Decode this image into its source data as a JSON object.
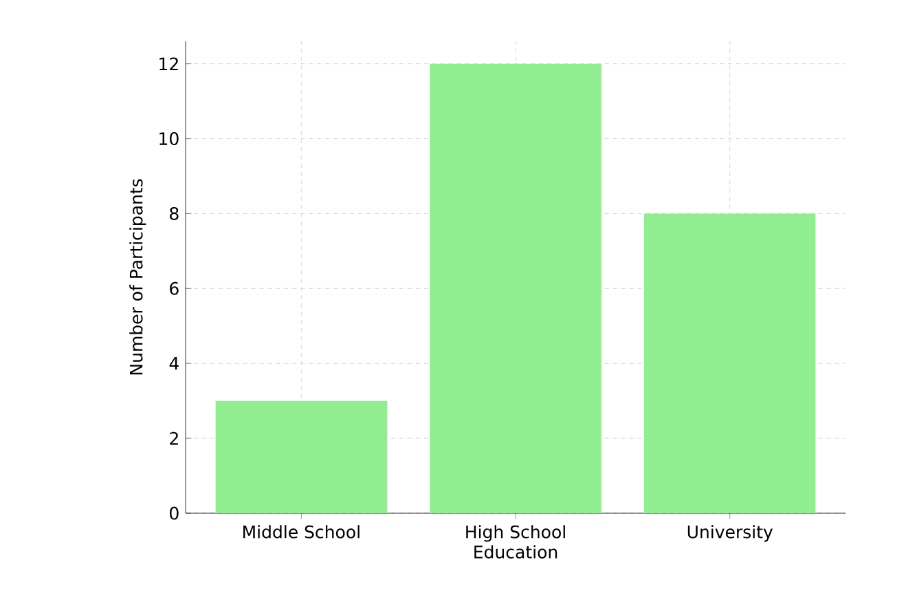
{
  "chart_data": {
    "type": "bar",
    "xlabel": "Education",
    "ylabel": "Number of Participants",
    "categories": [
      "Middle School",
      "High School",
      "University"
    ],
    "values": [
      3,
      12,
      8
    ],
    "color": "#90ee90",
    "ylim": [
      0,
      12.6
    ],
    "yticks": [
      0,
      2,
      4,
      6,
      8,
      10,
      12
    ],
    "grid": true
  }
}
